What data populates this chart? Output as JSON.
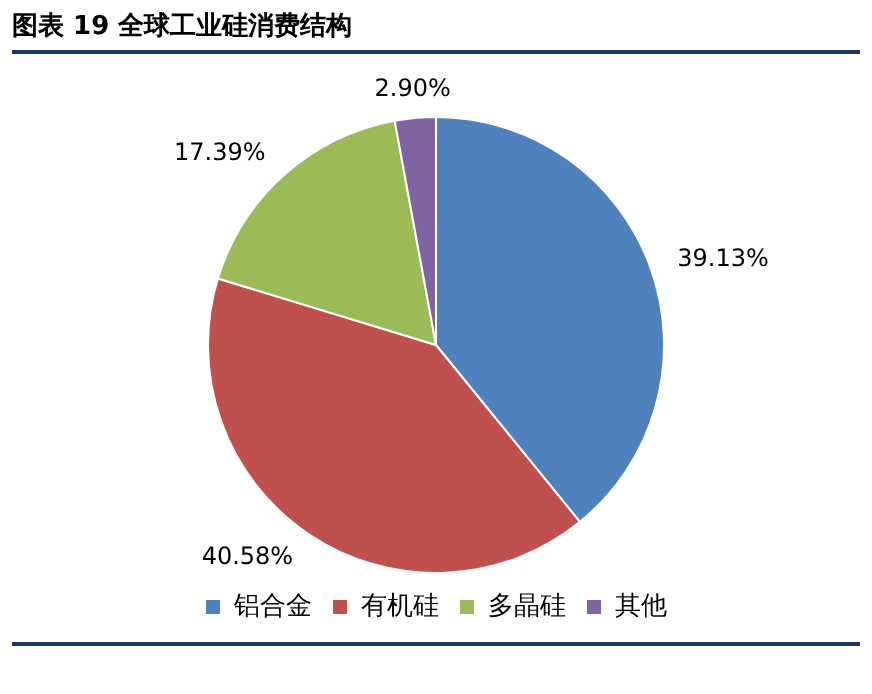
{
  "chart_data": {
    "type": "pie",
    "title": "图表 19  全球工业硅消费结构",
    "categories": [
      "铝合金",
      "有机硅",
      "多晶硅",
      "其他"
    ],
    "values": [
      39.13,
      40.58,
      17.39,
      2.9
    ],
    "value_labels": [
      "39.13%",
      "40.58%",
      "17.39%",
      "2.90%"
    ],
    "colors": [
      "#4f81bd",
      "#c0504d",
      "#9bbb59",
      "#8064a2"
    ],
    "legend": "bottom"
  }
}
